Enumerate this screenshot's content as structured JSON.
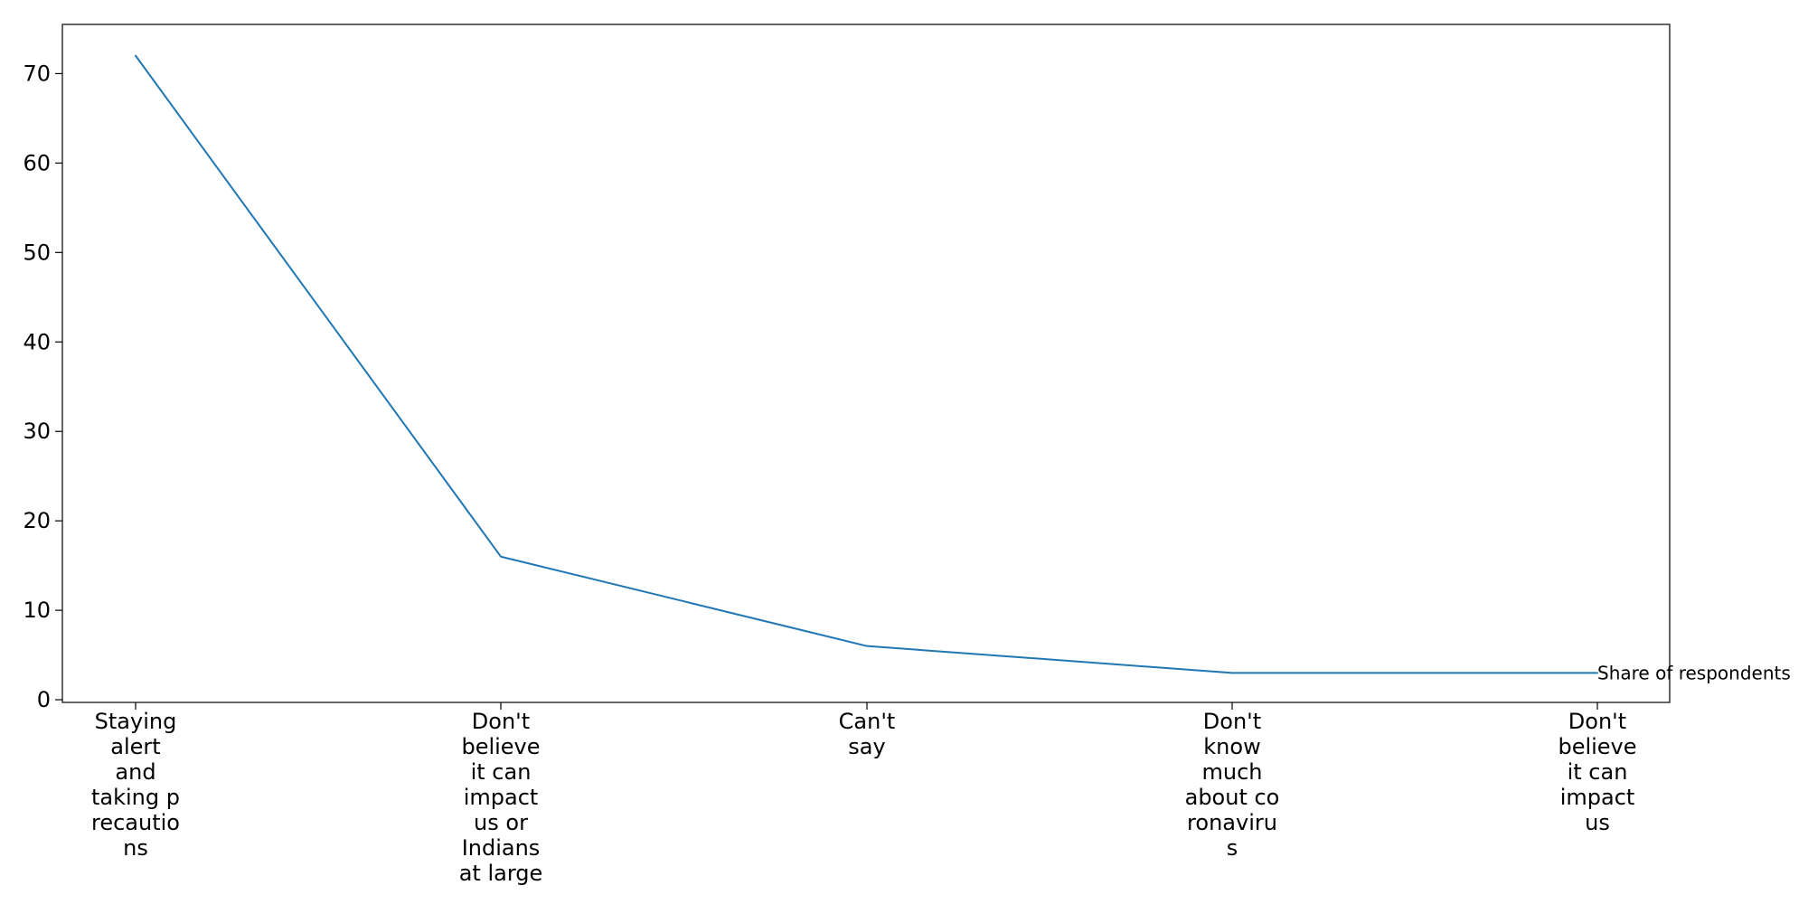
{
  "chart_data": {
    "type": "line",
    "title": "",
    "xlabel": "",
    "ylabel": "",
    "categories": [
      "Staying alert and taking precautions",
      "Don't believe it can impact us or Indians at large",
      "Can't say",
      "Don't know much about coronavirus",
      "Don't believe it can impact us"
    ],
    "category_label_lines": [
      [
        "Staying",
        "alert",
        "and",
        "taking p",
        "recautio",
        "ns"
      ],
      [
        "Don't",
        "believe",
        "it can",
        "impact",
        "us or",
        "Indians",
        "at large"
      ],
      [
        "Can't",
        "say"
      ],
      [
        "Don't",
        "know",
        "much",
        "about co",
        "ronaviru",
        "s"
      ],
      [
        "Don't",
        "believe",
        "it can",
        "impact",
        "us"
      ]
    ],
    "series": [
      {
        "name": "Share of respondents",
        "color": "#1f77b4",
        "values": [
          72,
          16,
          6,
          3,
          3
        ]
      }
    ],
    "ylim": [
      -0.3,
      75.5
    ],
    "yticks": [
      0,
      10,
      20,
      30,
      40,
      50,
      60,
      70
    ],
    "grid": false,
    "legend": "none",
    "series_label_position": "end-of-line"
  }
}
